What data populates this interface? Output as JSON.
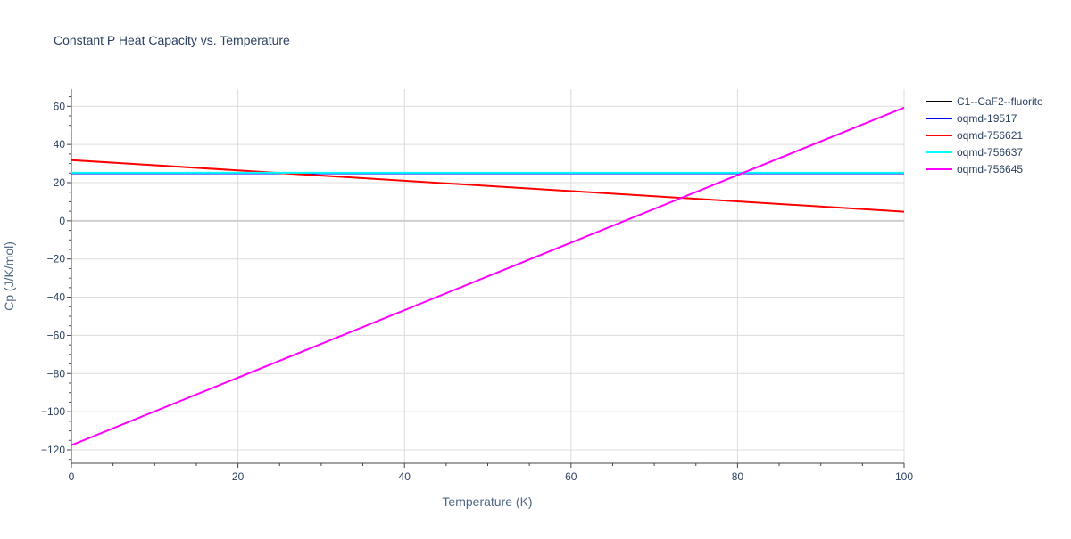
{
  "chart_data": {
    "type": "line",
    "title": "Constant P Heat Capacity vs. Temperature",
    "xlabel": "Temperature (K)",
    "ylabel": "Cp (J/K/mol)",
    "xlim": [
      0,
      100
    ],
    "ylim": [
      -127,
      69
    ],
    "x_ticks": [
      0,
      20,
      40,
      60,
      80,
      100
    ],
    "y_ticks": [
      -120,
      -100,
      -80,
      -60,
      -40,
      -20,
      0,
      20,
      40,
      60
    ],
    "x_tick_labels": [
      "0",
      "20",
      "40",
      "60",
      "80",
      "100"
    ],
    "y_tick_labels": [
      "−120",
      "−100",
      "−80",
      "−60",
      "−40",
      "−20",
      "0",
      "20",
      "40",
      "60"
    ],
    "grid": true,
    "legend_position": "top-right",
    "series": [
      {
        "name": "C1--CaF2--fluorite",
        "color": "#000000",
        "x": [
          0,
          100
        ],
        "y": [
          24.9,
          24.9
        ]
      },
      {
        "name": "oqmd-19517",
        "color": "#0000ff",
        "x": [
          0,
          100
        ],
        "y": [
          24.9,
          24.9
        ]
      },
      {
        "name": "oqmd-756621",
        "color": "#ff0000",
        "x": [
          0,
          100
        ],
        "y": [
          31.8,
          4.8
        ]
      },
      {
        "name": "oqmd-756637",
        "color": "#00ffff",
        "x": [
          0,
          100
        ],
        "y": [
          25.2,
          25.2
        ]
      },
      {
        "name": "oqmd-756645",
        "color": "#ff00ff",
        "x": [
          0,
          100
        ],
        "y": [
          -117.5,
          59.3
        ]
      }
    ]
  }
}
